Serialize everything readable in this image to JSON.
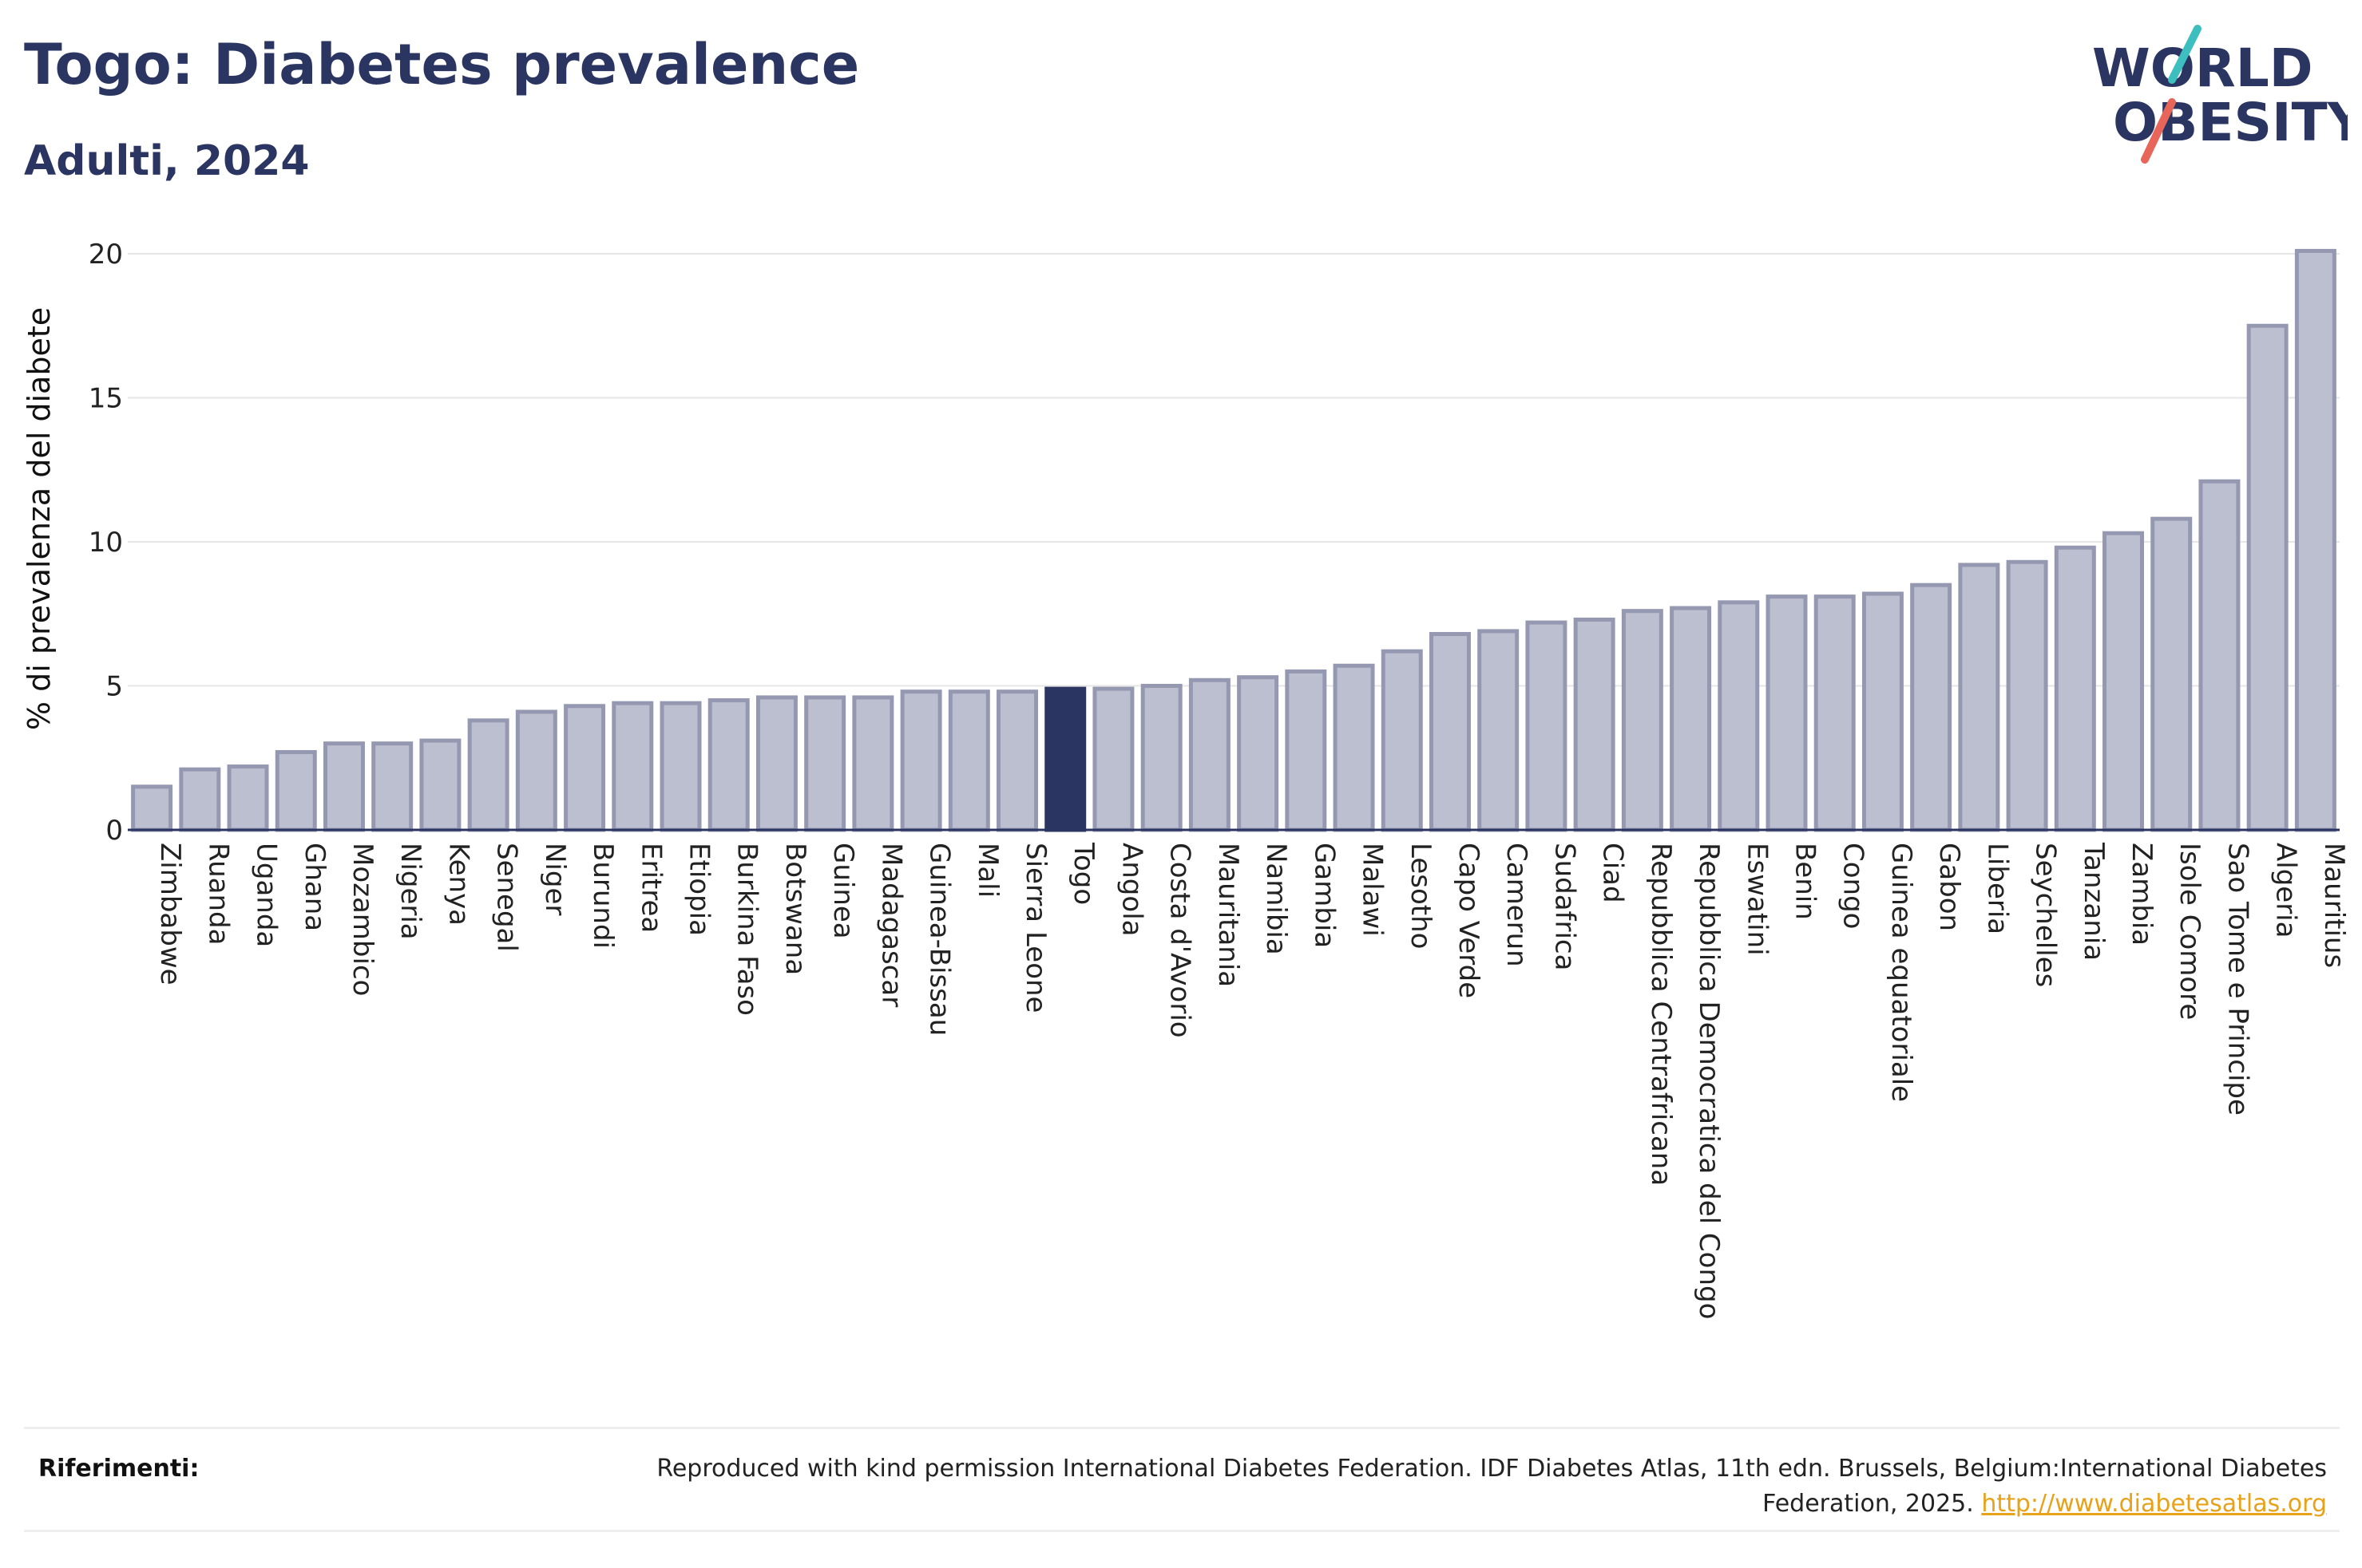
{
  "header": {
    "title": "Togo: Diabetes prevalence",
    "subtitle": "Adulti, 2024"
  },
  "logo": {
    "line1": "WORLD",
    "line2": "OBESITY",
    "colors": {
      "text": "#2b3561",
      "slash_top": "#3dbfbf",
      "slash_bottom": "#e8655a"
    }
  },
  "colors": {
    "bar_default": "#bcbfcf",
    "bar_default_stroke": "#9598b1",
    "bar_highlight": "#2b3561",
    "axis": "#2b3561",
    "grid": "#e6e6e6",
    "tick_text": "#222222"
  },
  "chart_data": {
    "type": "bar",
    "title": "Togo: Diabetes prevalence",
    "subtitle": "Adulti, 2024",
    "xlabel": "",
    "ylabel": "% di prevalenza del diabete",
    "ylim": [
      0,
      20.5
    ],
    "yticks": [
      0,
      5,
      10,
      15,
      20
    ],
    "grid": true,
    "highlight": "Togo",
    "categories": [
      "Zimbabwe",
      "Ruanda",
      "Uganda",
      "Ghana",
      "Mozambico",
      "Nigeria",
      "Kenya",
      "Senegal",
      "Niger",
      "Burundi",
      "Eritrea",
      "Etiopia",
      "Burkina Faso",
      "Botswana",
      "Guinea",
      "Madagascar",
      "Guinea-Bissau",
      "Mali",
      "Sierra Leone",
      "Togo",
      "Angola",
      "Costa d'Avorio",
      "Mauritania",
      "Namibia",
      "Gambia",
      "Malawi",
      "Lesotho",
      "Capo Verde",
      "Camerun",
      "Sudafrica",
      "Ciad",
      "Repubblica Centrafricana",
      "Repubblica Democratica del Congo",
      "Eswatini",
      "Benin",
      "Congo",
      "Guinea equatoriale",
      "Gabon",
      "Liberia",
      "Seychelles",
      "Tanzania",
      "Zambia",
      "Isole Comore",
      "Sao Tome e Principe",
      "Algeria",
      "Mauritius"
    ],
    "values": [
      1.5,
      2.1,
      2.2,
      2.7,
      3.0,
      3.0,
      3.1,
      3.8,
      4.1,
      4.3,
      4.4,
      4.4,
      4.5,
      4.6,
      4.6,
      4.6,
      4.8,
      4.8,
      4.8,
      4.9,
      4.9,
      5.0,
      5.2,
      5.3,
      5.5,
      5.7,
      6.2,
      6.8,
      6.9,
      7.2,
      7.3,
      7.6,
      7.7,
      7.9,
      8.1,
      8.1,
      8.2,
      8.5,
      9.2,
      9.3,
      9.8,
      10.3,
      10.8,
      12.1,
      17.5,
      20.1
    ]
  },
  "footer": {
    "label": "Riferimenti:",
    "text": "Reproduced with kind permission International Diabetes Federation. IDF Diabetes Atlas, 11th edn. Brussels, Belgium:International Diabetes Federation, 2025.",
    "link": "http://www.diabetesatlas.org"
  }
}
